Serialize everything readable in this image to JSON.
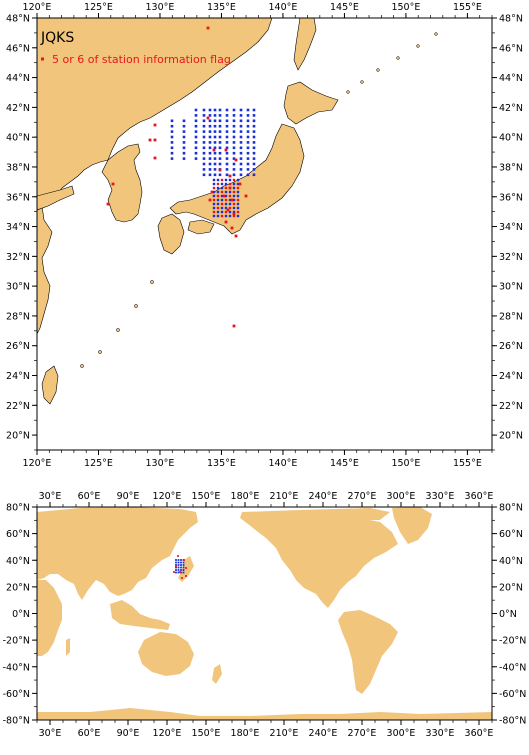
{
  "colors": {
    "land": "#f2c57d",
    "sea": "#ffffff",
    "coast": "#000000",
    "station_blue": "#1a2fd8",
    "station_red": "#e8161b"
  },
  "map_top": {
    "title": "JQKS",
    "legend_label": "5 or 6 of station information flag",
    "lon_range": [
      120,
      157
    ],
    "lat_range": [
      19,
      48
    ],
    "lon_ticks": [
      "120°E",
      "125°E",
      "130°E",
      "135°E",
      "140°E",
      "145°E",
      "150°E",
      "155°E"
    ],
    "lat_ticks": [
      "20°N",
      "22°N",
      "24°N",
      "26°N",
      "28°N",
      "30°N",
      "32°N",
      "34°N",
      "36°N",
      "38°N",
      "40°N",
      "42°N",
      "44°N",
      "46°N",
      "48°N"
    ]
  },
  "map_bottom": {
    "lon_range": [
      20,
      370
    ],
    "lat_range": [
      -80,
      80
    ],
    "lon_ticks": [
      "30°E",
      "60°E",
      "90°E",
      "120°E",
      "150°E",
      "180°E",
      "210°E",
      "240°E",
      "270°E",
      "300°E",
      "330°E",
      "360°E"
    ],
    "lat_ticks": [
      "80°N",
      "60°N",
      "40°N",
      "20°N",
      "0°N",
      "-20°N",
      "-40°N",
      "-60°N",
      "-80°N"
    ]
  }
}
